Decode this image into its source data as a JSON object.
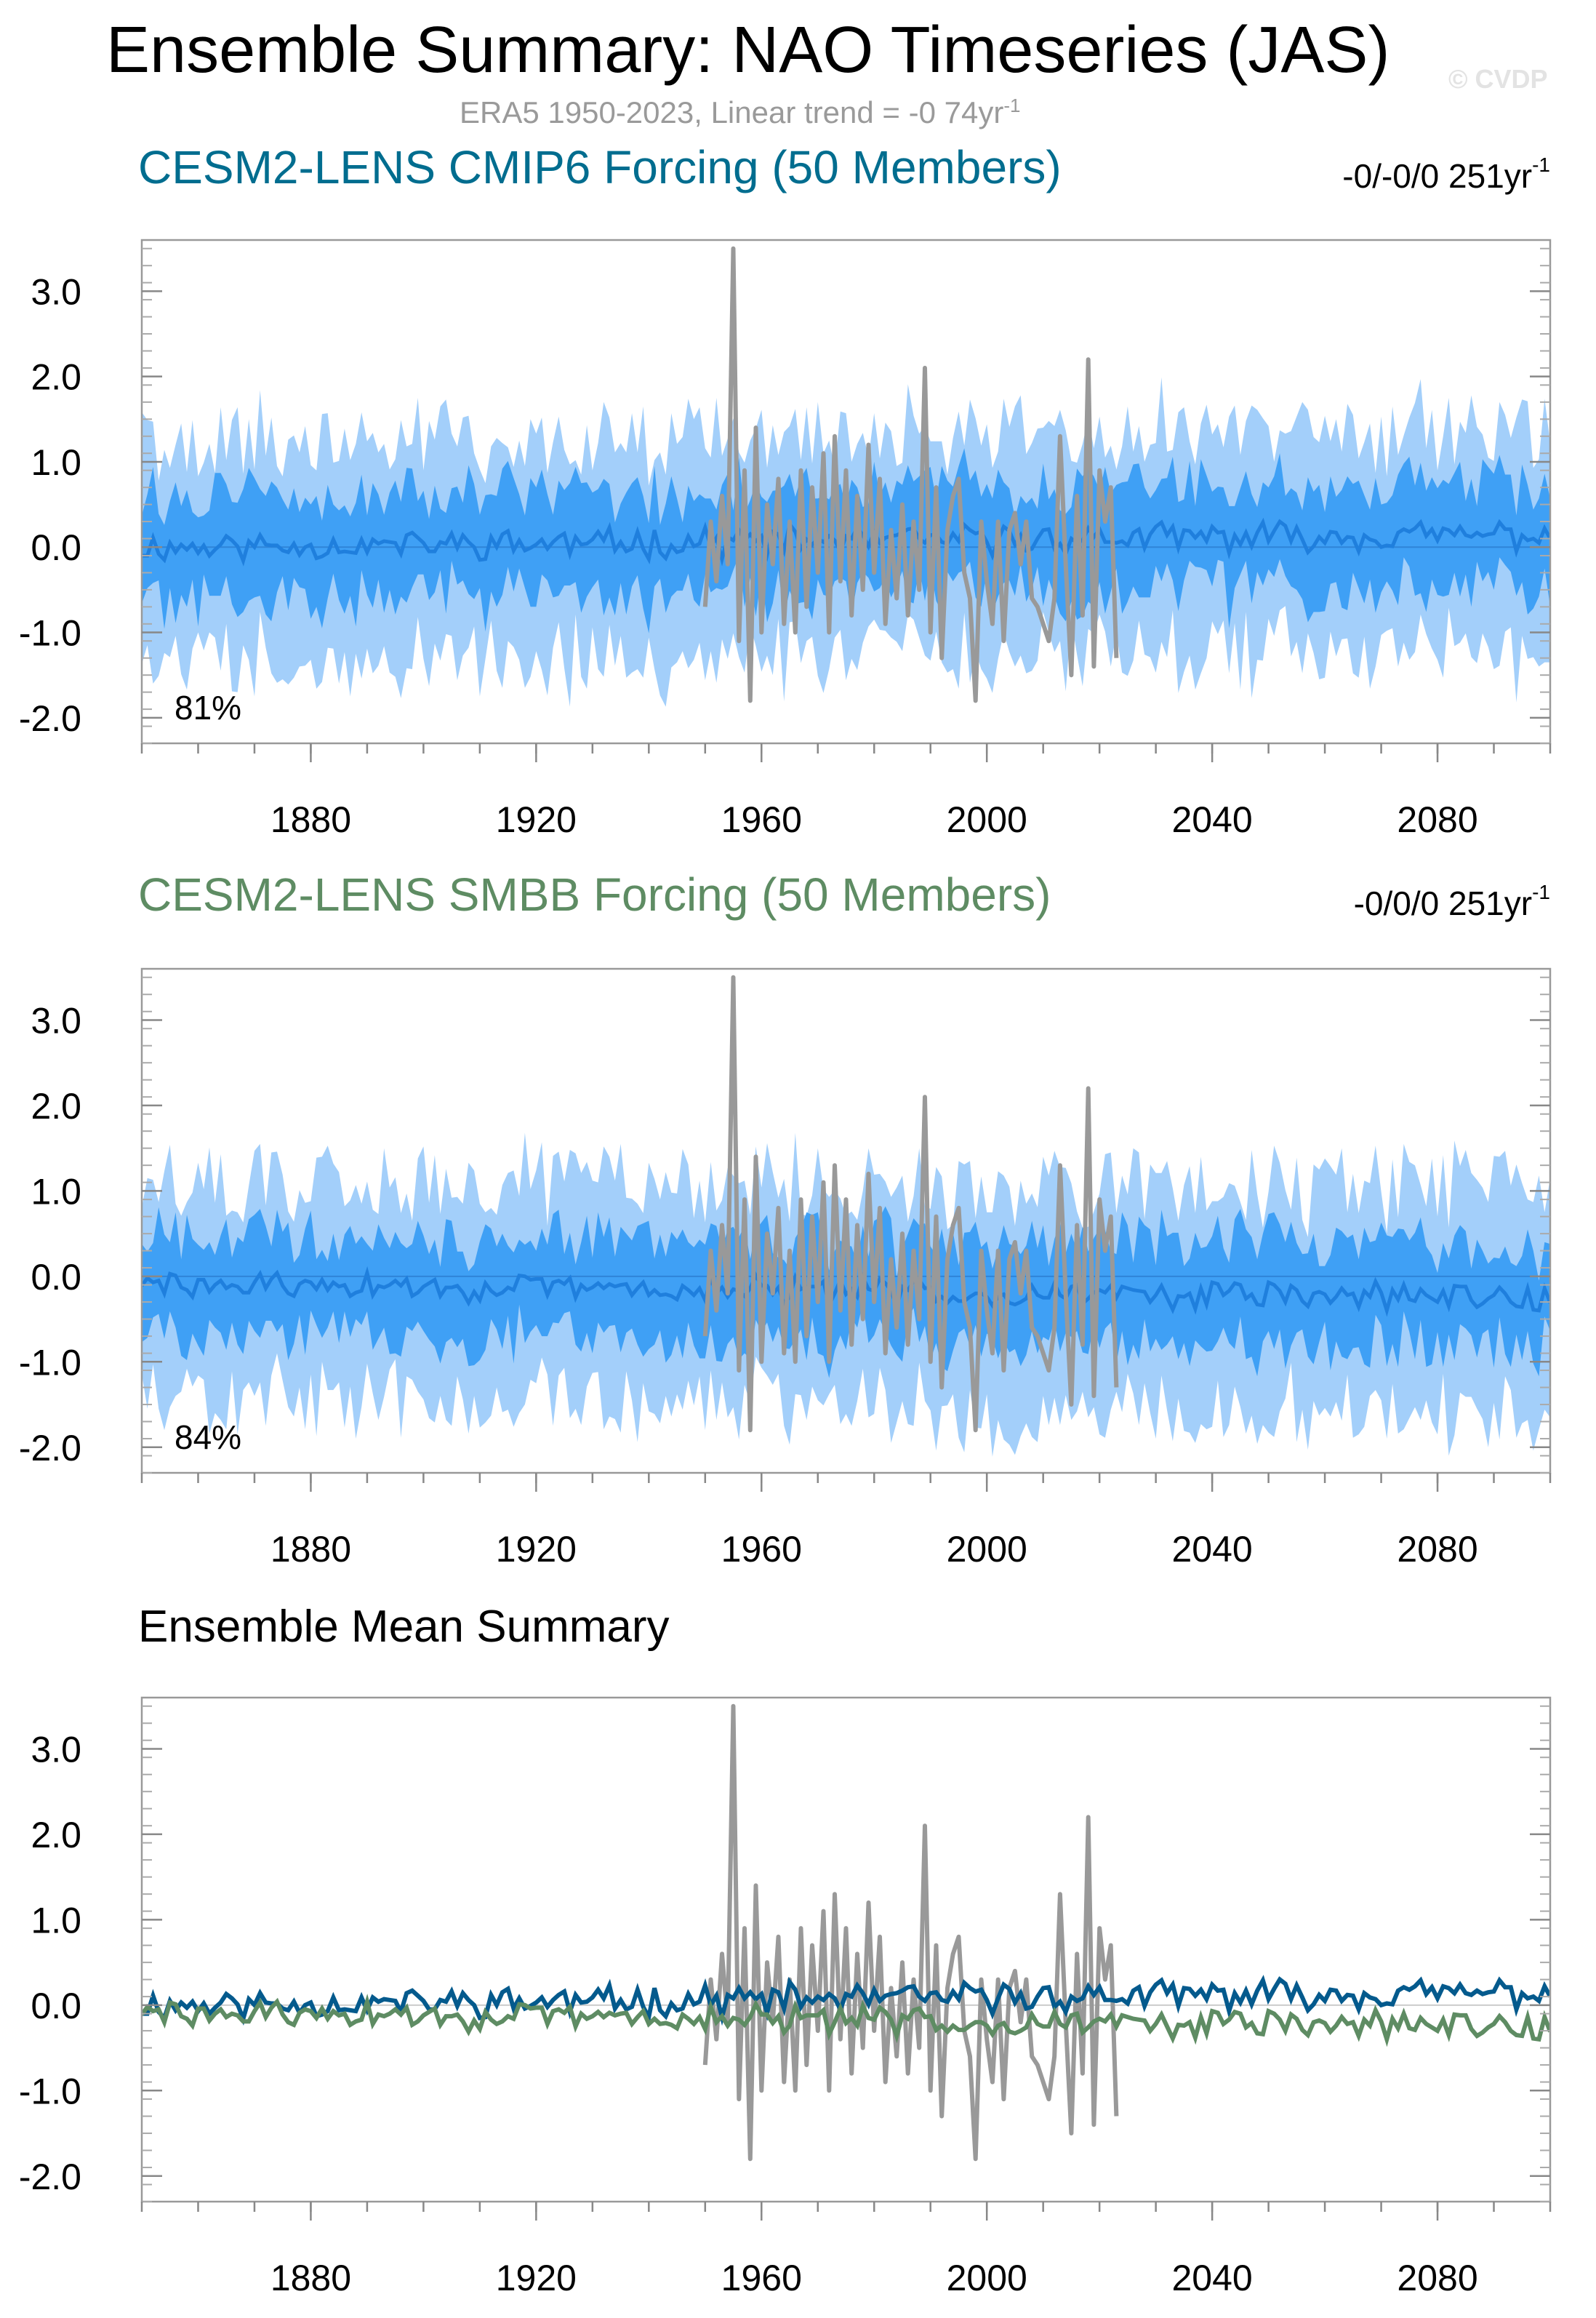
{
  "figure": {
    "title": "Ensemble Summary: NAO Timeseries (JAS)",
    "subtitle_main": "ERA5 1950-2023, Linear trend = -0 74yr",
    "subtitle_sup": "-1",
    "watermark": "© CVDP"
  },
  "colors": {
    "light_band": "#a3cffa",
    "dark_band": "#3fa0f5",
    "ensemble_mean": "#1f7fdd",
    "observed": "#999999",
    "cmip6_title": "#006d8f",
    "smbb_title": "#5e8c63",
    "cmip6_mean_line": "#045a8d",
    "smbb_mean_line": "#5e8c63"
  },
  "chart_data": [
    {
      "type": "area",
      "title": "CESM2-LENS CMIP6 Forcing (50 Members)",
      "trend_main": "-0/-0/0 251yr",
      "trend_sup": "-1",
      "percent": "81%",
      "xlim": [
        1850,
        2100
      ],
      "ylim": [
        -2.3,
        3.6
      ],
      "x_ticks": [
        "1880",
        "1920",
        "1960",
        "2000",
        "2040",
        "2080"
      ],
      "y_ticks": [
        "3.0",
        "2.0",
        "1.0",
        "0.0",
        "-1.0",
        "-2.0"
      ],
      "envelope_outer": {
        "upper_mean": 1.2,
        "lower_mean": -1.4
      },
      "envelope_inner": {
        "upper_mean": 0.6,
        "lower_mean": -0.6
      },
      "ensemble_mean": {
        "start": 0.0,
        "end": 0.15
      },
      "x": [],
      "series": []
    },
    {
      "type": "area",
      "title": "CESM2-LENS SMBB Forcing (50 Members)",
      "trend_main": "-0/0/0 251yr",
      "trend_sup": "-1",
      "percent": "84%",
      "xlim": [
        1850,
        2100
      ],
      "ylim": [
        -2.3,
        3.6
      ],
      "x_ticks": [
        "1880",
        "1920",
        "1960",
        "2000",
        "2040",
        "2080"
      ],
      "y_ticks": [
        "3.0",
        "2.0",
        "1.0",
        "0.0",
        "-1.0",
        "-2.0"
      ],
      "envelope_outer": {
        "upper_mean": 1.2,
        "lower_mean": -1.4
      },
      "envelope_inner": {
        "upper_mean": 0.6,
        "lower_mean": -0.6
      },
      "ensemble_mean": {
        "start": -0.1,
        "end": -0.3
      },
      "x": [],
      "series": []
    },
    {
      "type": "line",
      "title": "Ensemble Mean Summary",
      "xlim": [
        1850,
        2100
      ],
      "ylim": [
        -2.3,
        3.6
      ],
      "x_ticks": [
        "1880",
        "1920",
        "1960",
        "2000",
        "2040",
        "2080"
      ],
      "y_ticks": [
        "3.0",
        "2.0",
        "1.0",
        "0.0",
        "-1.0",
        "-2.0"
      ],
      "x": [],
      "series": []
    }
  ]
}
